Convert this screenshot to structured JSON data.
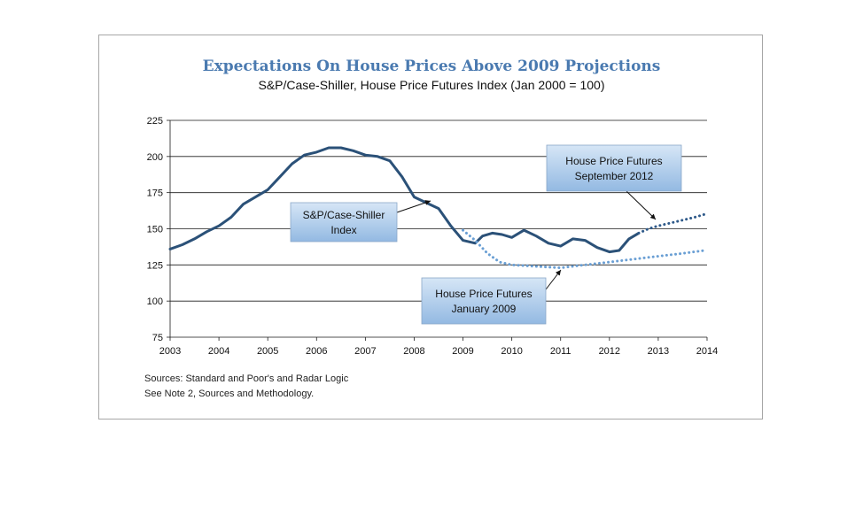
{
  "title": "Expectations On House Prices Above 2009 Projections",
  "subtitle": "S&P/Case-Shiller, House Price Futures Index (Jan 2000 = 100)",
  "sources": [
    "Sources:  Standard and Poor's and Radar Logic",
    "See Note 2, Sources and Methodology."
  ],
  "colors": {
    "index_line": "#2b5178",
    "futures_jan2009": "#6a9fd4",
    "futures_sep2012": "#2f5a8a",
    "callout_fill_top": "#d6e6f6",
    "callout_fill_bottom": "#93b9e2"
  },
  "chart_data": {
    "type": "line",
    "title": "Expectations On House Prices Above 2009 Projections",
    "subtitle": "S&P/Case-Shiller, House Price Futures Index (Jan 2000 = 100)",
    "xlabel": "",
    "ylabel": "",
    "xlim": [
      2003,
      2014
    ],
    "ylim": [
      75,
      225
    ],
    "x_ticks": [
      "2003",
      "2004",
      "2005",
      "2006",
      "2007",
      "2008",
      "2009",
      "2010",
      "2011",
      "2012",
      "2013",
      "2014"
    ],
    "y_ticks": [
      "75",
      "100",
      "125",
      "150",
      "175",
      "200",
      "225"
    ],
    "grid": "horizontal",
    "series": [
      {
        "name": "S&P/Case-Shiller Index",
        "style": "solid",
        "x": [
          2003.0,
          2003.25,
          2003.5,
          2003.75,
          2004.0,
          2004.25,
          2004.5,
          2004.75,
          2005.0,
          2005.25,
          2005.5,
          2005.75,
          2006.0,
          2006.25,
          2006.5,
          2006.75,
          2007.0,
          2007.25,
          2007.5,
          2007.75,
          2008.0,
          2008.25,
          2008.5,
          2008.75,
          2009.0,
          2009.25,
          2009.4,
          2009.6,
          2009.8,
          2010.0,
          2010.25,
          2010.5,
          2010.75,
          2011.0,
          2011.25,
          2011.5,
          2011.75,
          2012.0,
          2012.2,
          2012.4,
          2012.6
        ],
        "values": [
          136,
          139,
          143,
          148,
          152,
          158,
          167,
          172,
          177,
          186,
          195,
          201,
          203,
          206,
          206,
          204,
          201,
          200,
          197,
          186,
          172,
          168,
          164,
          152,
          142,
          140,
          145,
          147,
          146,
          144,
          149,
          145,
          140,
          138,
          143,
          142,
          137,
          134,
          135,
          143,
          147
        ]
      },
      {
        "name": "House Price Futures January 2009",
        "style": "dotted",
        "x": [
          2009.0,
          2009.25,
          2009.5,
          2009.75,
          2010.0,
          2010.5,
          2011.0,
          2011.5,
          2012.0,
          2012.5,
          2013.0,
          2013.5,
          2013.95
        ],
        "values": [
          149,
          142,
          133,
          127,
          125,
          124,
          123,
          125,
          127,
          129,
          131,
          133,
          135
        ]
      },
      {
        "name": "House Price Futures September 2012",
        "style": "dotted",
        "x": [
          2012.6,
          2012.8,
          2013.0,
          2013.25,
          2013.5,
          2013.75,
          2013.95
        ],
        "values": [
          147,
          150,
          152,
          154,
          156,
          158,
          160
        ]
      }
    ],
    "annotations": [
      {
        "label": [
          "S&P/Case-Shiller",
          "Index"
        ]
      },
      {
        "label": [
          "House Price Futures",
          "September 2012"
        ]
      },
      {
        "label": [
          "House Price Futures",
          "January 2009"
        ]
      }
    ]
  }
}
